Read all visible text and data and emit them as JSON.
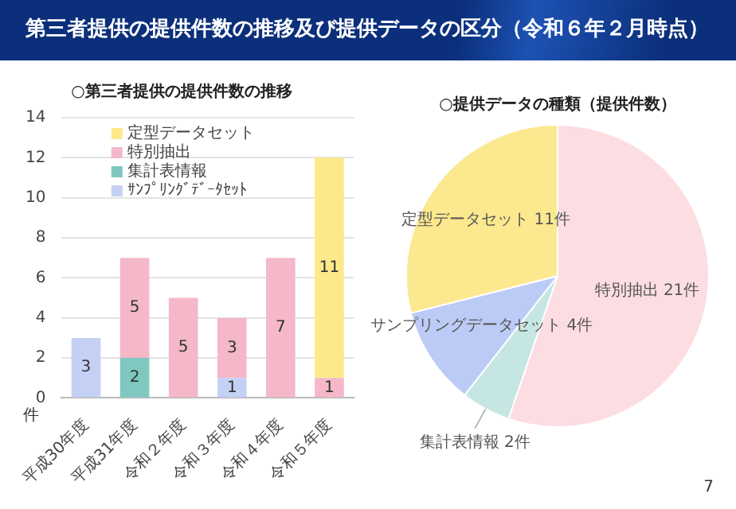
{
  "chart_data": [
    {
      "type": "other",
      "title": "第三者提供の提供件数の推移及び提供データの区分（令和６年２月時点）",
      "annotations": [
        "7"
      ]
    },
    {
      "type": "bar",
      "title": "○第三者提供の提供件数の推移",
      "ylabel": "件",
      "categories": [
        "平成30年度",
        "平成31年度",
        "令和２年度",
        "令和３年度",
        "令和４年度",
        "令和５年度"
      ],
      "stacked": true,
      "series": [
        {
          "name": "ｻﾝﾌﾟﾘﾝｸﾞﾃﾞｰﾀｾｯﾄ",
          "color": "#c5d0f5",
          "values": [
            3,
            null,
            null,
            1,
            null,
            null
          ]
        },
        {
          "name": "集計表情報",
          "color": "#7ec8c0",
          "values": [
            null,
            2,
            null,
            null,
            null,
            null
          ]
        },
        {
          "name": "特別抽出",
          "color": "#f4b8c8",
          "values": [
            null,
            5,
            5,
            3,
            7,
            1
          ]
        },
        {
          "name": "定型データセット",
          "color": "#fde98a",
          "values": [
            null,
            null,
            null,
            null,
            null,
            11
          ]
        }
      ],
      "ylim": [
        0,
        14
      ],
      "yticks": [
        0,
        2,
        4,
        6,
        8,
        10,
        12,
        14
      ],
      "grid": "y",
      "legend": "top left",
      "data_labels": true
    },
    {
      "type": "pie",
      "title": "○提供データの種類（提供件数）",
      "categories": [
        "特別抽出",
        "集計表情報",
        "サンプリングデータセット",
        "定型データセット"
      ],
      "values": [
        21,
        2,
        4,
        11
      ],
      "colors": [
        "#fcdde2",
        "#c6e6e3",
        "#bccbf6",
        "#fbe88f"
      ],
      "value_labels": [
        "21件",
        "2件",
        "4件",
        "11件"
      ]
    }
  ]
}
